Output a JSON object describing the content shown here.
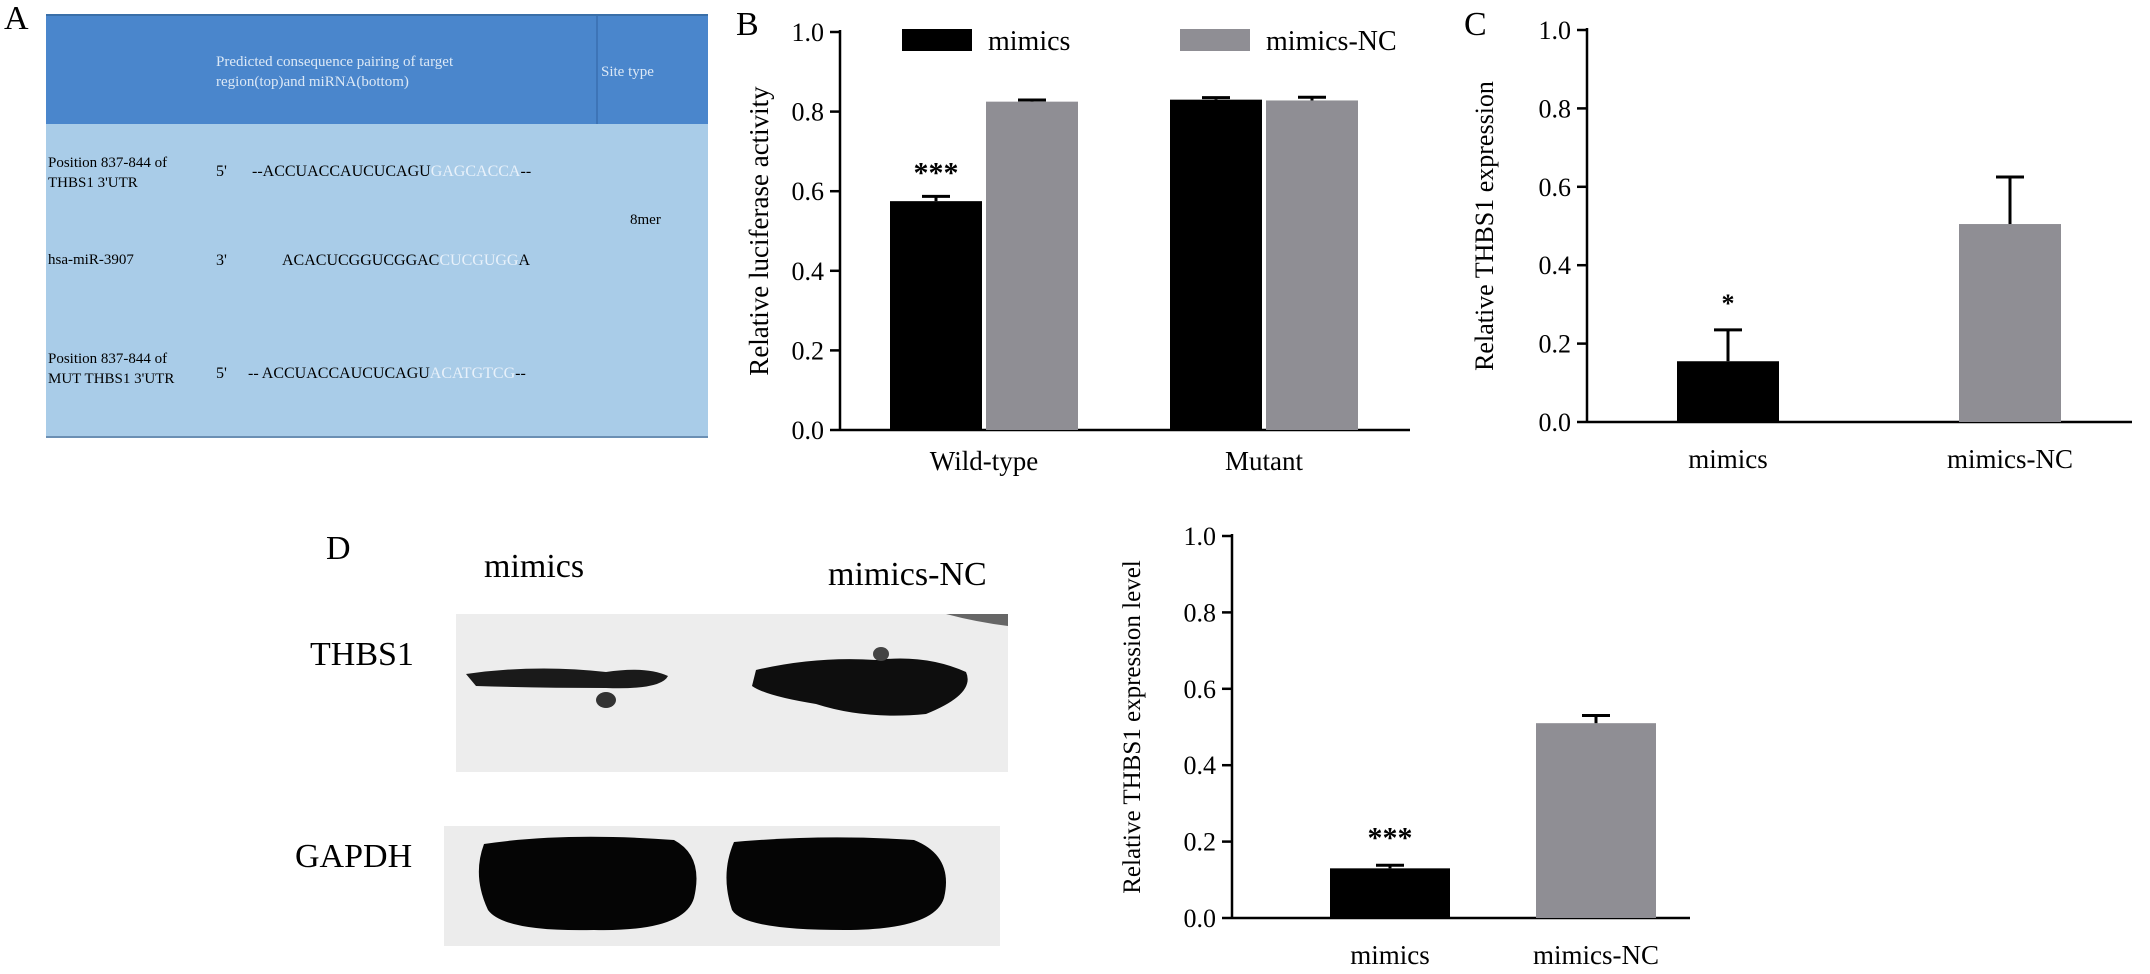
{
  "panels": {
    "A": "A",
    "B": "B",
    "C": "C",
    "D": "D"
  },
  "tableA": {
    "header": {
      "col2_line1": "Predicted consequence pairing of target",
      "col2_line2": "region(top)and miRNA(bottom)",
      "col3": "Site type"
    },
    "rows": [
      {
        "label_line1": "Position 837-844 of",
        "label_line2": "THBS1 3'UTR",
        "end": "5'",
        "seq_prefix": "--ACCUACCAUCUCAGU",
        "seq_seed": "GAGCACCA",
        "seq_suffix": "--"
      },
      {
        "label_line1": "hsa-miR-3907",
        "label_line2": "",
        "end": "3'",
        "seq_prefix": "ACACUCGGUCGGAC",
        "seq_seed": "CUCGUGG",
        "seq_suffix": "A"
      },
      {
        "label_line1": "Position 837-844 of",
        "label_line2": "MUT THBS1 3'UTR",
        "end": "5'",
        "seq_prefix": "-- ACCUACCAUCUCAGU",
        "seq_seed": "ACATGTCG",
        "seq_suffix": "--"
      }
    ],
    "site_type": "8mer"
  },
  "blot": {
    "col_labels": [
      "mimics",
      "mimics-NC"
    ],
    "row_labels": [
      "THBS1",
      "GAPDH"
    ]
  },
  "colors": {
    "mimics": "#000000",
    "mimics_nc": "#8f8e94",
    "table_header": "#4a86cc",
    "table_body": "#a9cce8"
  },
  "chart_data": [
    {
      "id": "B",
      "type": "bar",
      "categories": [
        "Wild-type",
        "Mutant"
      ],
      "series": [
        {
          "name": "mimics",
          "values": [
            0.575,
            0.83
          ],
          "errors": [
            0.012,
            0.005
          ]
        },
        {
          "name": "mimics-NC",
          "values": [
            0.825,
            0.828
          ],
          "errors": [
            0.004,
            0.008
          ]
        }
      ],
      "annotations": [
        {
          "category": "Wild-type",
          "series": "mimics",
          "text": "***"
        }
      ],
      "ylabel": "Relative luciferase activity",
      "yticks": [
        "0.0",
        "0.2",
        "0.4",
        "0.6",
        "0.8",
        "1.0"
      ],
      "ylim": [
        0,
        1.0
      ],
      "legend": "top"
    },
    {
      "id": "C",
      "type": "bar",
      "categories": [
        "mimics",
        "mimics-NC"
      ],
      "values": [
        0.155,
        0.505
      ],
      "errors": [
        0.08,
        0.12
      ],
      "annotations": [
        {
          "category": "mimics",
          "text": "*"
        }
      ],
      "ylabel": "Relative THBS1 expression",
      "yticks": [
        "0.0",
        "0.2",
        "0.4",
        "0.6",
        "0.8",
        "1.0"
      ],
      "ylim": [
        0,
        1.0
      ]
    },
    {
      "id": "D",
      "type": "bar",
      "categories": [
        "mimics",
        "mimics-NC"
      ],
      "values": [
        0.13,
        0.51
      ],
      "errors": [
        0.008,
        0.02
      ],
      "annotations": [
        {
          "category": "mimics",
          "text": "***"
        }
      ],
      "ylabel": "Relative THBS1  expression level",
      "yticks": [
        "0.0",
        "0.2",
        "0.4",
        "0.6",
        "0.8",
        "1.0"
      ],
      "ylim": [
        0,
        1.0
      ]
    }
  ]
}
